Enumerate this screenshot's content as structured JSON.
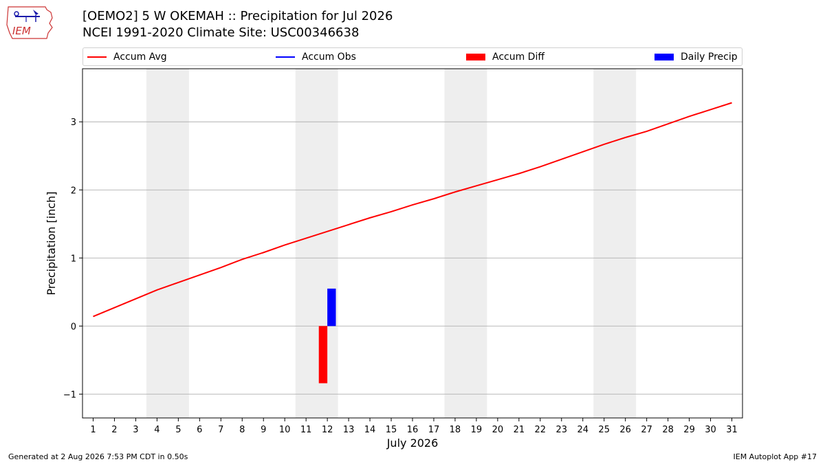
{
  "logo": {
    "text": "IEM"
  },
  "header": {
    "title_line1": "[OEMO2] 5 W OKEMAH :: Precipitation for Jul 2026",
    "title_line2": "NCEI 1991-2020 Climate Site: USC00346638"
  },
  "legend": [
    {
      "label": "Accum Avg",
      "kind": "line",
      "color": "#ff0000"
    },
    {
      "label": "Accum Obs",
      "kind": "line",
      "color": "#0000ff"
    },
    {
      "label": "Accum Diff",
      "kind": "box",
      "color": "#ff0000"
    },
    {
      "label": "Daily Precip",
      "kind": "box",
      "color": "#0000ff"
    }
  ],
  "chart_data": {
    "type": "line",
    "xlabel": "July 2026",
    "ylabel": "Precipitation [inch]",
    "x": [
      1,
      2,
      3,
      4,
      5,
      6,
      7,
      8,
      9,
      10,
      11,
      12,
      13,
      14,
      15,
      16,
      17,
      18,
      19,
      20,
      21,
      22,
      23,
      24,
      25,
      26,
      27,
      28,
      29,
      30,
      31
    ],
    "xlim": [
      0.5,
      31.5
    ],
    "ylim": [
      -1.35,
      3.78
    ],
    "yticks": [
      -1,
      0,
      1,
      2,
      3
    ],
    "ytick_labels": [
      "−1",
      "0",
      "1",
      "2",
      "3"
    ],
    "grid": "horizontal",
    "weekend_shading": [
      [
        3.5,
        5.5
      ],
      [
        10.5,
        12.5
      ],
      [
        17.5,
        19.5
      ],
      [
        24.5,
        26.5
      ]
    ],
    "series": [
      {
        "name": "Accum Avg",
        "kind": "line",
        "color": "#ff0000",
        "values": [
          0.14,
          0.27,
          0.4,
          0.53,
          0.64,
          0.75,
          0.86,
          0.98,
          1.08,
          1.19,
          1.29,
          1.39,
          1.49,
          1.59,
          1.68,
          1.78,
          1.87,
          1.97,
          2.06,
          2.15,
          2.24,
          2.34,
          2.45,
          2.56,
          2.67,
          2.77,
          2.86,
          2.97,
          3.08,
          3.18,
          3.28
        ]
      },
      {
        "name": "Accum Diff",
        "kind": "bar",
        "color": "#ff0000",
        "x": [
          12
        ],
        "values": [
          -0.84
        ],
        "offset": -0.2
      },
      {
        "name": "Daily Precip",
        "kind": "bar",
        "color": "#0000ff",
        "x": [
          12
        ],
        "values": [
          0.55
        ],
        "offset": 0.2
      }
    ]
  },
  "footer": {
    "left": "Generated at 2 Aug 2026 7:53 PM CDT in 0.50s",
    "right": "IEM Autoplot App #17"
  }
}
